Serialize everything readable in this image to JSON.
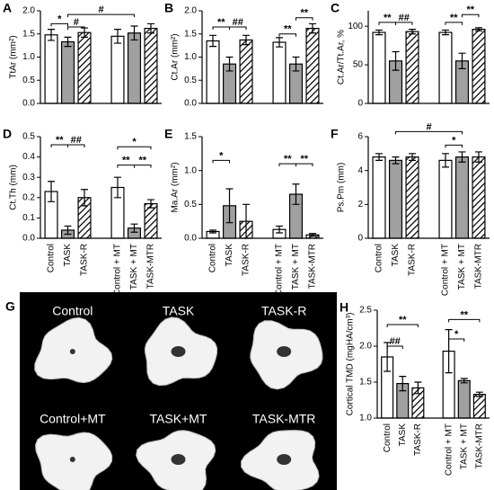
{
  "chart_data": [
    {
      "type": "bar",
      "panel": "A",
      "ylabel": "TtAr (mm²)",
      "values": [
        1.48,
        1.33,
        1.53,
        1.45,
        1.52,
        1.62
      ],
      "errors": [
        0.12,
        0.1,
        0.1,
        0.15,
        0.15,
        0.1
      ],
      "fills": [
        "#ffffff",
        "#a0a0a0",
        "hatch",
        "#ffffff",
        "#a0a0a0",
        "hatch"
      ],
      "ylim": [
        0,
        2.0
      ],
      "yticks": [
        {
          "value": 0,
          "label": "0.0"
        },
        0.5,
        {
          "value": 1,
          "label": "1.0"
        },
        1.5,
        {
          "value": 2,
          "label": "2.0"
        }
      ],
      "annotations": [
        {
          "text": "*",
          "from": 0,
          "to": 1,
          "y": 1.72
        },
        {
          "text": "#",
          "from": 1,
          "to": 2,
          "y": 1.65
        },
        {
          "text": "#",
          "from": 1,
          "to": 4,
          "y": 1.92
        }
      ]
    },
    {
      "type": "bar",
      "panel": "B",
      "ylabel": "Ct.Ar (mm²)",
      "values": [
        1.35,
        0.85,
        1.37,
        1.32,
        0.85,
        1.62
      ],
      "errors": [
        0.12,
        0.15,
        0.1,
        0.1,
        0.15,
        0.1
      ],
      "fills": [
        "#ffffff",
        "#a0a0a0",
        "hatch",
        "#ffffff",
        "#a0a0a0",
        "hatch"
      ],
      "ylim": [
        0,
        2.0
      ],
      "yticks": [
        {
          "value": 0,
          "label": "0.0"
        },
        0.5,
        {
          "value": 1,
          "label": "1.0"
        },
        1.5,
        {
          "value": 2,
          "label": "2.0"
        }
      ],
      "annotations": [
        {
          "text": "**",
          "from": 0,
          "to": 1,
          "y": 1.65
        },
        {
          "text": "##",
          "from": 1,
          "to": 2,
          "y": 1.65
        },
        {
          "text": "**",
          "from": 3,
          "to": 4,
          "y": 1.5
        },
        {
          "text": "**",
          "from": 4,
          "to": 5,
          "y": 1.85
        }
      ]
    },
    {
      "type": "bar",
      "panel": "C",
      "ylabel": "Ct.Ar/Tt.Ar, %",
      "values": [
        92,
        55,
        93,
        92,
        55,
        96
      ],
      "errors": [
        3,
        12,
        3,
        3,
        10,
        2
      ],
      "fills": [
        "#ffffff",
        "#a0a0a0",
        "hatch",
        "#ffffff",
        "#a0a0a0",
        "hatch"
      ],
      "ylim": [
        0,
        120
      ],
      "yticks": [
        0,
        50,
        100
      ],
      "annotations": [
        {
          "text": "**",
          "from": 0,
          "to": 1,
          "y": 105
        },
        {
          "text": "##",
          "from": 1,
          "to": 2,
          "y": 105
        },
        {
          "text": "**",
          "from": 3,
          "to": 4,
          "y": 105
        },
        {
          "text": "**",
          "from": 4,
          "to": 5,
          "y": 115
        }
      ]
    },
    {
      "type": "bar",
      "panel": "D",
      "ylabel": "Ct.Th (mm)",
      "categories": [
        "Control",
        "TASK",
        "TASK-R",
        "Control + MT",
        "TASK + MT",
        "TASK-MTR"
      ],
      "values": [
        0.23,
        0.04,
        0.2,
        0.25,
        0.05,
        0.17
      ],
      "errors": [
        0.05,
        0.02,
        0.04,
        0.05,
        0.02,
        0.02
      ],
      "fills": [
        "#ffffff",
        "#a0a0a0",
        "hatch",
        "#ffffff",
        "#a0a0a0",
        "hatch"
      ],
      "ylim": [
        0,
        0.5
      ],
      "yticks": [
        {
          "value": 0,
          "label": "0.0"
        },
        0.1,
        0.2,
        0.3,
        0.4,
        0.5
      ],
      "annotations": [
        {
          "text": "**",
          "from": 0,
          "to": 1,
          "y": 0.46
        },
        {
          "text": "##",
          "from": 1,
          "to": 2,
          "y": 0.46
        },
        {
          "text": "*",
          "from": 3,
          "to": 5,
          "y": 0.45
        },
        {
          "text": "**",
          "from": 3,
          "to": 4,
          "y": 0.36
        },
        {
          "text": "**",
          "from": 4,
          "to": 5,
          "y": 0.36
        }
      ]
    },
    {
      "type": "bar",
      "panel": "E",
      "ylabel": "Ma.Ar (mm²)",
      "categories": [
        "Control",
        "TASK",
        "TASK-R",
        "Control + MT",
        "TASK + MT",
        "TASK-MTR"
      ],
      "values": [
        0.1,
        0.48,
        0.25,
        0.13,
        0.65,
        0.05
      ],
      "errors": [
        0.02,
        0.25,
        0.25,
        0.05,
        0.15,
        0.02
      ],
      "fills": [
        "#ffffff",
        "#a0a0a0",
        "hatch",
        "#ffffff",
        "#a0a0a0",
        "hatch"
      ],
      "ylim": [
        0,
        1.5
      ],
      "yticks": [
        {
          "value": 0,
          "label": "0.0"
        },
        0.5,
        {
          "value": 1,
          "label": "1.0"
        },
        1.5
      ],
      "annotations": [
        {
          "text": "*",
          "from": 0,
          "to": 1,
          "y": 1.15
        },
        {
          "text": "**",
          "from": 3,
          "to": 4,
          "y": 1.1
        },
        {
          "text": "**",
          "from": 4,
          "to": 5,
          "y": 1.1
        }
      ]
    },
    {
      "type": "bar",
      "panel": "F",
      "ylabel": "Ps.Pm (mm)",
      "categories": [
        "Control",
        "TASK",
        "TASK-R",
        "Control + MT",
        "TASK + MT",
        "TASK-MTR"
      ],
      "values": [
        4.8,
        4.6,
        4.8,
        4.6,
        4.8,
        4.8
      ],
      "errors": [
        0.2,
        0.2,
        0.2,
        0.4,
        0.3,
        0.3
      ],
      "fills": [
        "#ffffff",
        "#a0a0a0",
        "hatch",
        "#ffffff",
        "#a0a0a0",
        "hatch"
      ],
      "ylim": [
        0,
        6
      ],
      "yticks": [
        0,
        2,
        4,
        6
      ],
      "annotations": [
        {
          "text": "#",
          "from": 1,
          "to": 4,
          "y": 6.3
        },
        {
          "text": "*",
          "from": 3,
          "to": 4,
          "y": 5.5
        }
      ]
    },
    {
      "type": "bar",
      "panel": "H",
      "ylabel": "Cortical TMD (mgHA/cm³)",
      "categories": [
        "Control",
        "TASK",
        "TASK-R",
        "Control + MT",
        "TASK + MT",
        "TASK-MTR"
      ],
      "values": [
        1.85,
        1.48,
        1.42,
        1.93,
        1.52,
        1.33
      ],
      "errors": [
        0.2,
        0.1,
        0.08,
        0.3,
        0.03,
        0.03
      ],
      "fills": [
        "#ffffff",
        "#a0a0a0",
        "hatch",
        "#ffffff",
        "#a0a0a0",
        "hatch"
      ],
      "ylim": [
        1.0,
        2.5
      ],
      "yticks": [
        {
          "value": 1,
          "label": "1.0"
        },
        1.5,
        {
          "value": 2,
          "label": "2.0"
        },
        2.5
      ],
      "annotations": [
        {
          "text": "##",
          "from": 0,
          "to": 1,
          "y": 2.0
        },
        {
          "text": "**",
          "from": 0,
          "to": 2,
          "y": 2.3
        },
        {
          "text": "*",
          "from": 3,
          "to": 4,
          "y": 2.1
        },
        {
          "text": "**",
          "from": 3,
          "to": 5,
          "y": 2.37
        }
      ]
    }
  ],
  "image_panel": {
    "panel": "G",
    "labels": [
      "Control",
      "TASK",
      "TASK-R",
      "Control+MT",
      "TASK+MT",
      "TASK-MTR"
    ]
  }
}
